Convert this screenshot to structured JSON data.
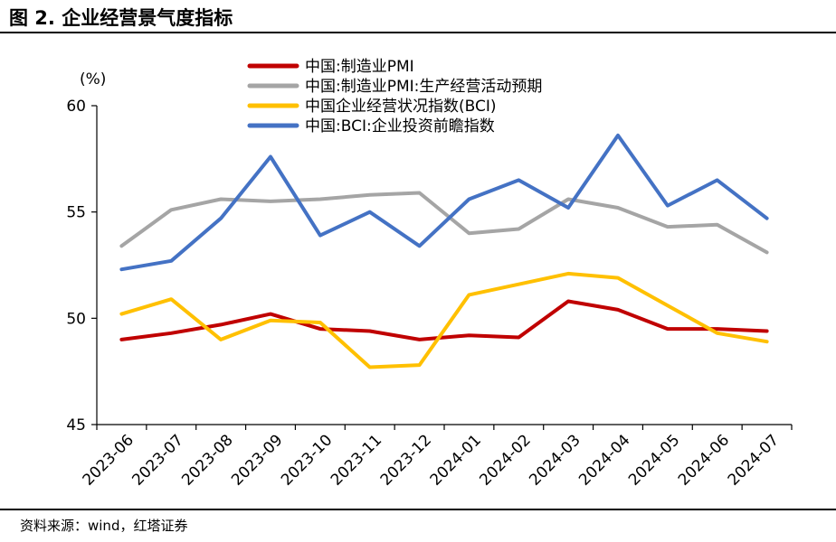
{
  "figure": {
    "title": "图 2. 企业经营景气度指标",
    "source": "资料来源：wind，红塔证券"
  },
  "chart_data": {
    "type": "line",
    "unit_label": "(%)",
    "categories": [
      "2023-06",
      "2023-07",
      "2023-08",
      "2023-09",
      "2023-10",
      "2023-11",
      "2023-12",
      "2024-01",
      "2024-02",
      "2024-03",
      "2024-04",
      "2024-05",
      "2024-06",
      "2024-07"
    ],
    "ylim": [
      45,
      60
    ],
    "yticks": [
      45,
      50,
      55,
      60
    ],
    "grid": false,
    "legend_position": "top",
    "series": [
      {
        "name": "中国:制造业PMI",
        "color": "#c00000",
        "values": [
          49.0,
          49.3,
          49.7,
          50.2,
          49.5,
          49.4,
          49.0,
          49.2,
          49.1,
          50.8,
          50.4,
          49.5,
          49.5,
          49.4
        ]
      },
      {
        "name": "中国:制造业PMI:生产经营活动预期",
        "color": "#a5a5a5",
        "values": [
          53.4,
          55.1,
          55.6,
          55.5,
          55.6,
          55.8,
          55.9,
          54.0,
          54.2,
          55.6,
          55.2,
          54.3,
          54.4,
          53.1
        ]
      },
      {
        "name": "中国企业经营状况指数(BCI)",
        "color": "#ffc000",
        "values": [
          50.2,
          50.9,
          49.0,
          49.9,
          49.8,
          47.7,
          47.8,
          51.1,
          51.6,
          52.1,
          51.9,
          50.6,
          49.3,
          48.9
        ]
      },
      {
        "name": "中国:BCI:企业投资前瞻指数",
        "color": "#4472c4",
        "values": [
          52.3,
          52.7,
          54.7,
          57.6,
          53.9,
          55.0,
          53.4,
          55.6,
          56.5,
          55.2,
          58.6,
          55.3,
          56.5,
          54.7
        ]
      }
    ]
  }
}
